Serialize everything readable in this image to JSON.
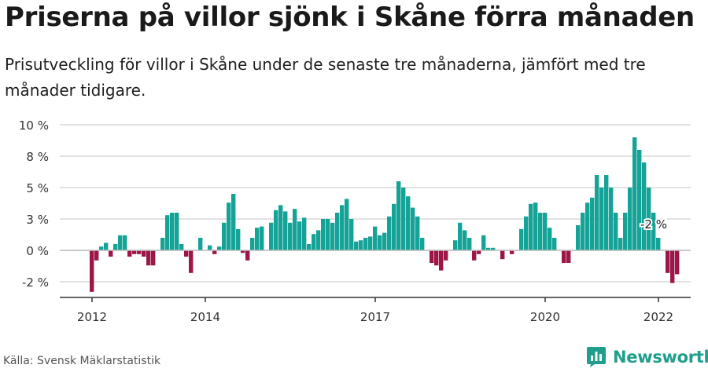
{
  "header": {
    "title": "Priserna på villor sjönk i Skåne förra månaden",
    "subtitle": "Prisutveckling för villor i Skåne under de senaste tre månaderna, jämfört med tre månader tidigare."
  },
  "footer": {
    "source": "Källa: Svensk Mäklarstatistik",
    "brand": "Newsworthy"
  },
  "colors": {
    "positive": "#14a396",
    "negative": "#9c1647",
    "grid": "#d9d9d9",
    "axis": "#333333",
    "brand": "#1f9e8c"
  },
  "chart_data": {
    "type": "bar",
    "xlabel": "",
    "ylabel": "",
    "ylim": [
      -3.75,
      10
    ],
    "y_ticks": [
      {
        "value": 10,
        "label": "10 %"
      },
      {
        "value": 7.5,
        "label": "8 %"
      },
      {
        "value": 5,
        "label": "5 %"
      },
      {
        "value": 2.5,
        "label": "3 %"
      },
      {
        "value": 0,
        "label": "0 %"
      },
      {
        "value": -2.5,
        "label": "-2 %"
      }
    ],
    "x_ticks": [
      {
        "index": 0,
        "label": "2012"
      },
      {
        "index": 24,
        "label": "2014"
      },
      {
        "index": 60,
        "label": "2017"
      },
      {
        "index": 96,
        "label": "2020"
      },
      {
        "index": 120,
        "label": "2022"
      }
    ],
    "annotation": {
      "index": 119,
      "label": "-2 %"
    },
    "start": "2012-01",
    "values": [
      -3.3,
      -0.8,
      0.3,
      0.6,
      -0.5,
      0.5,
      1.2,
      1.2,
      -0.5,
      -0.3,
      -0.3,
      -0.5,
      -1.2,
      -1.2,
      0.0,
      1.0,
      2.8,
      3.0,
      3.0,
      0.5,
      -0.5,
      -1.8,
      0.0,
      1.0,
      0.0,
      0.4,
      -0.3,
      0.3,
      2.2,
      3.8,
      4.5,
      1.7,
      -0.2,
      -0.8,
      1.0,
      1.8,
      1.9,
      0.0,
      2.2,
      3.2,
      3.6,
      3.1,
      2.2,
      3.3,
      2.3,
      2.6,
      0.5,
      1.3,
      1.6,
      2.5,
      2.5,
      2.2,
      3.0,
      3.6,
      4.1,
      2.5,
      0.7,
      0.8,
      1.0,
      1.1,
      1.9,
      1.2,
      1.4,
      2.7,
      3.7,
      5.5,
      5.0,
      4.3,
      3.4,
      2.7,
      1.0,
      0.0,
      -1.0,
      -1.2,
      -1.6,
      -0.8,
      0.0,
      0.8,
      2.2,
      1.6,
      1.0,
      -0.8,
      -0.3,
      1.2,
      0.2,
      0.2,
      0.0,
      -0.7,
      0.0,
      -0.3,
      0.0,
      1.7,
      2.7,
      3.7,
      3.8,
      3.0,
      3.0,
      1.8,
      1.0,
      0.0,
      -1.0,
      -1.0,
      0.0,
      2.0,
      3.0,
      3.8,
      4.2,
      6.0,
      5.0,
      6.0,
      5.0,
      3.0,
      1.0,
      3.0,
      5.0,
      9.0,
      8.0,
      7.0,
      5.0,
      3.0,
      1.0,
      0.0,
      -1.8,
      -2.6,
      -1.9
    ]
  }
}
